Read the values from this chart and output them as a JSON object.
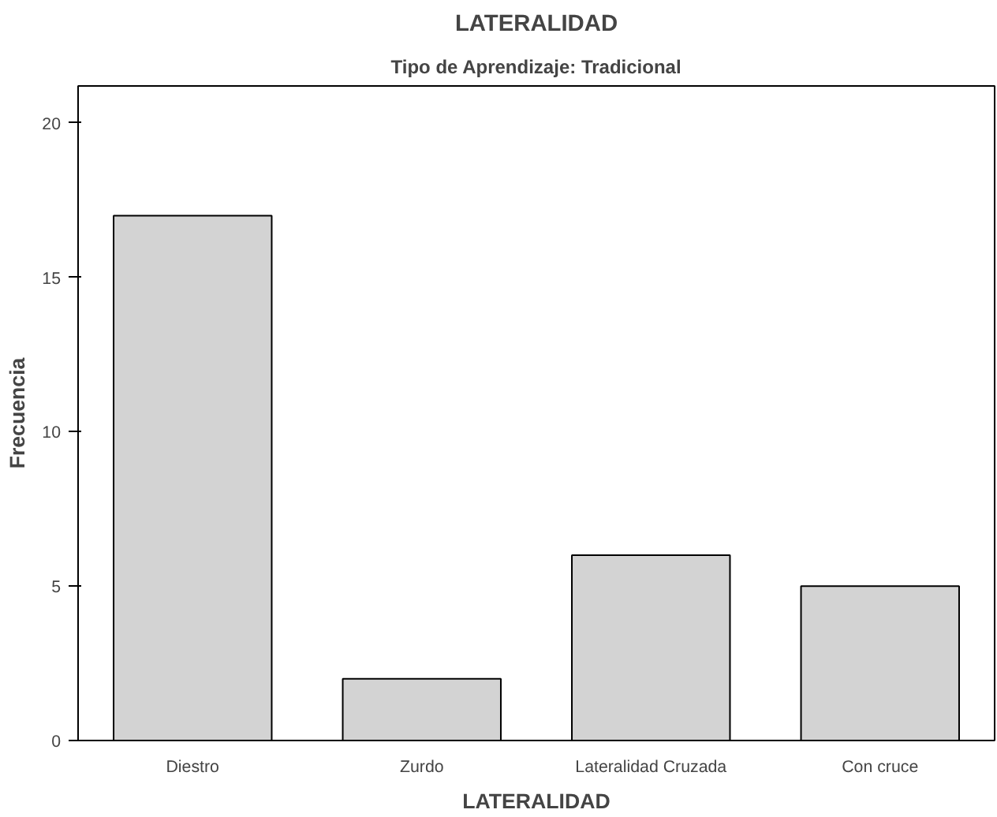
{
  "chart_data": {
    "type": "bar",
    "title": "LATERALIDAD",
    "subtitle": "Tipo de Aprendizaje: Tradicional",
    "xlabel": "LATERALIDAD",
    "ylabel": "Frecuencia",
    "categories": [
      "Diestro",
      "Zurdo",
      "Lateralidad Cruzada",
      "Con cruce"
    ],
    "values": [
      17,
      2,
      6,
      5
    ],
    "color": "#d3d3d3",
    "ylim": [
      0,
      21.2
    ],
    "yticks": [
      0,
      5,
      10,
      15,
      20
    ],
    "grid": false
  }
}
